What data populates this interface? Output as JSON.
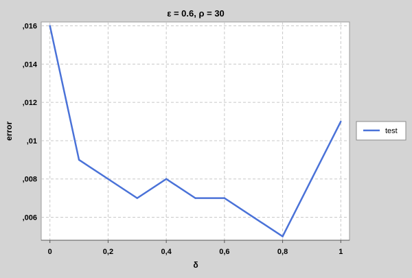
{
  "chart_data": {
    "type": "line",
    "title": "ε = 0.6, ρ = 30",
    "xlabel": "δ",
    "ylabel": "error",
    "xlim": [
      -0.03,
      1.03
    ],
    "ylim": [
      0.0048,
      0.0162
    ],
    "x_ticks": [
      0,
      0.2,
      0.4,
      0.6,
      0.8,
      1
    ],
    "x_tick_labels": [
      "0",
      "0,2",
      "0,4",
      "0,6",
      "0,8",
      "1"
    ],
    "y_ticks": [
      0.006,
      0.008,
      0.01,
      0.012,
      0.014,
      0.016
    ],
    "y_tick_labels": [
      ",006",
      ",008",
      ",01",
      ",012",
      ",014",
      ",016"
    ],
    "grid": true,
    "legend_position": "right",
    "series": [
      {
        "name": "test",
        "color": "#4a72d8",
        "x": [
          0,
          0.1,
          0.2,
          0.3,
          0.4,
          0.5,
          0.6,
          0.7,
          0.8,
          1.0
        ],
        "y": [
          0.016,
          0.009,
          0.008,
          0.007,
          0.008,
          0.007,
          0.007,
          0.006,
          0.005,
          0.011
        ]
      }
    ]
  }
}
